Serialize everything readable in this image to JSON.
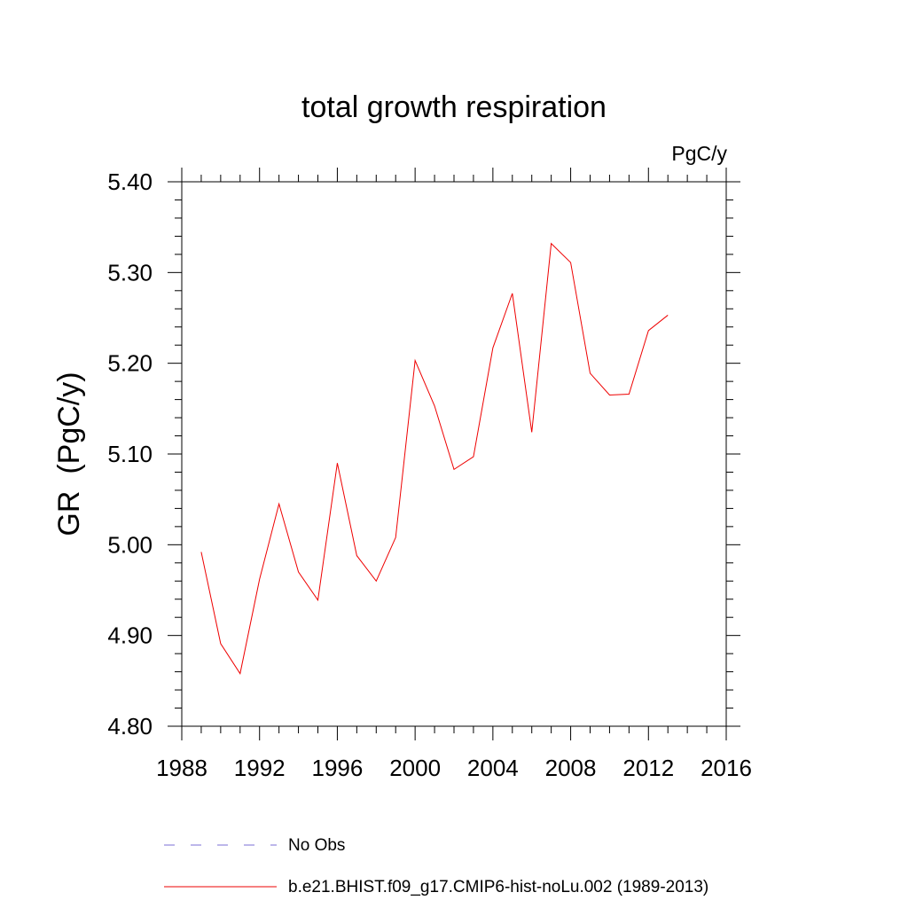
{
  "chart_data": {
    "type": "line",
    "title": "total growth respiration",
    "units": "PgC/y",
    "ylabel": "GR  (PgC/y)",
    "xlabel": "",
    "xlim": [
      1988,
      2016
    ],
    "ylim": [
      4.8,
      5.4
    ],
    "x_ticks": [
      1988,
      1992,
      1996,
      2000,
      2004,
      2008,
      2012,
      2016
    ],
    "y_ticks": [
      "4.80",
      "4.90",
      "5.00",
      "5.10",
      "5.20",
      "5.30",
      "5.40"
    ],
    "legend": "bottom",
    "series": [
      {
        "name": "b.e21.BHIST.f09_g17.CMIP6-hist-noLu.002 (1989-2013)",
        "color": "#ee0000",
        "style": "solid",
        "x": [
          1989,
          1990,
          1991,
          1992,
          1993,
          1994,
          1995,
          1996,
          1997,
          1998,
          1999,
          2000,
          2001,
          2002,
          2003,
          2004,
          2005,
          2006,
          2007,
          2008,
          2009,
          2010,
          2011,
          2012,
          2013
        ],
        "y": [
          4.992,
          4.891,
          4.858,
          4.962,
          5.045,
          4.97,
          4.939,
          5.09,
          4.988,
          4.96,
          5.008,
          5.203,
          5.153,
          5.083,
          5.097,
          5.217,
          5.277,
          5.124,
          5.332,
          5.311,
          5.189,
          5.165,
          5.166,
          5.236,
          5.253
        ]
      }
    ],
    "legend_entries": [
      {
        "label": "No Obs",
        "color": "#7b6fd6",
        "style": "dashed"
      },
      {
        "label": "b.e21.BHIST.f09_g17.CMIP6-hist-noLu.002 (1989-2013)",
        "color": "#ee0000",
        "style": "solid"
      }
    ]
  }
}
